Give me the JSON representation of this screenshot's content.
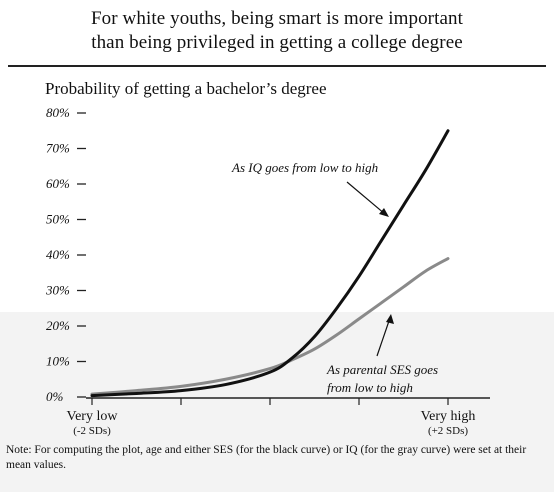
{
  "header": {
    "title_line1": "For white youths, being smart is more important",
    "title_line2": "than being privileged in getting a college degree"
  },
  "chart_data": {
    "type": "line",
    "title": "For white youths, being smart is more important than being privileged in getting a college degree",
    "ylabel": "Probability of getting a bachelor’s degree",
    "ylim": [
      0,
      80
    ],
    "yticks": [
      0,
      10,
      20,
      30,
      40,
      50,
      60,
      70,
      80
    ],
    "ytick_labels": [
      "0%",
      "10%",
      "20%",
      "30%",
      "40%",
      "50%",
      "60%",
      "70%",
      "80%"
    ],
    "xlim": [
      -2,
      2
    ],
    "x_labels": [
      {
        "x": -2,
        "label": "Very low",
        "sublabel": "(-2 SDs)"
      },
      {
        "x": 2,
        "label": "Very high",
        "sublabel": "(+2 SDs)"
      }
    ],
    "series": [
      {
        "name": "IQ",
        "color": "#111111",
        "x": [
          -2.0,
          -1.5,
          -1.0,
          -0.5,
          0.0,
          0.25,
          0.5,
          0.75,
          1.0,
          1.25,
          1.5,
          1.75,
          2.0
        ],
        "values": [
          0.4,
          1.0,
          1.8,
          3.5,
          7.0,
          11.0,
          17.0,
          25.0,
          34.0,
          44.0,
          54.0,
          64.0,
          75.0
        ]
      },
      {
        "name": "Parental SES",
        "color": "#8a8a8a",
        "x": [
          -2.0,
          -1.5,
          -1.0,
          -0.5,
          0.0,
          0.25,
          0.5,
          0.75,
          1.0,
          1.25,
          1.5,
          1.75,
          2.0
        ],
        "values": [
          0.8,
          1.8,
          3.0,
          5.0,
          8.0,
          10.5,
          13.5,
          17.5,
          22.0,
          26.5,
          31.0,
          35.5,
          39.0
        ]
      }
    ],
    "annotations": [
      {
        "text": "As IQ goes from low to high",
        "series": "IQ"
      },
      {
        "text_line1": "As parental SES goes",
        "text_line2": "from low to high",
        "series": "Parental SES"
      }
    ],
    "grid": false,
    "legend": "none"
  },
  "note": "Note: For computing the plot, age and either SES (for the black curve) or IQ (for the gray curve) were set at their mean values."
}
